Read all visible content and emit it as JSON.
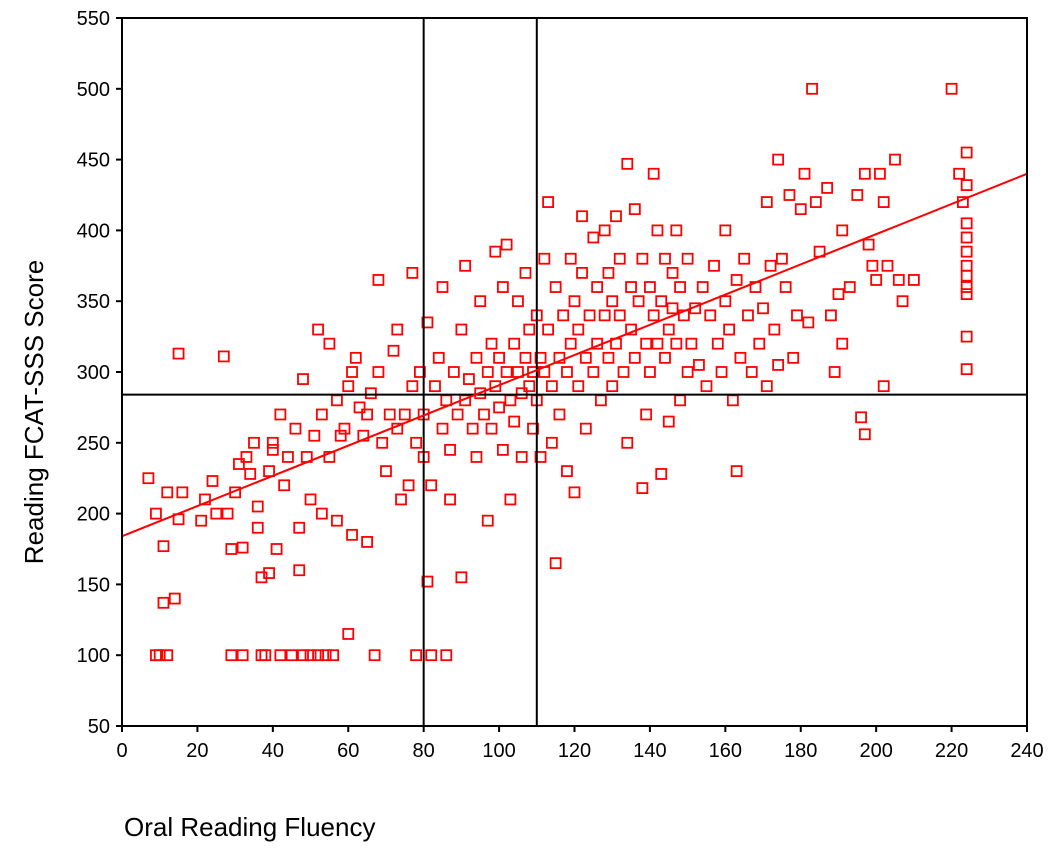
{
  "chart_data": {
    "type": "scatter",
    "title": "",
    "xlabel": "Oral Reading Fluency",
    "ylabel": "Reading FCAT-SSS Score",
    "xlim": [
      0,
      240
    ],
    "ylim": [
      50,
      550
    ],
    "xticks": [
      0,
      20,
      40,
      60,
      80,
      100,
      120,
      140,
      160,
      180,
      200,
      220,
      240
    ],
    "yticks": [
      50,
      100,
      150,
      200,
      250,
      300,
      350,
      400,
      450,
      500,
      550
    ],
    "grid": false,
    "legend": "none",
    "marker": "open-square",
    "series_color": "#ff0000",
    "reference_lines": {
      "vertical_x": [
        80,
        110
      ],
      "horizontal_y": [
        284
      ]
    },
    "regression_line": {
      "x": [
        0,
        240
      ],
      "y": [
        184,
        440
      ]
    },
    "series": [
      {
        "values_xy": [
          [
            7,
            225
          ],
          [
            9,
            100
          ],
          [
            10,
            100
          ],
          [
            9,
            200
          ],
          [
            11,
            177
          ],
          [
            11,
            137
          ],
          [
            12,
            215
          ],
          [
            12,
            100
          ],
          [
            14,
            140
          ],
          [
            15,
            313
          ],
          [
            16,
            215
          ],
          [
            15,
            196
          ],
          [
            21,
            195
          ],
          [
            22,
            210
          ],
          [
            24,
            223
          ],
          [
            25,
            200
          ],
          [
            27,
            311
          ],
          [
            28,
            200
          ],
          [
            29,
            175
          ],
          [
            29,
            100
          ],
          [
            30,
            215
          ],
          [
            31,
            235
          ],
          [
            32,
            100
          ],
          [
            32,
            176
          ],
          [
            33,
            240
          ],
          [
            34,
            228
          ],
          [
            35,
            250
          ],
          [
            36,
            205
          ],
          [
            36,
            190
          ],
          [
            37,
            100
          ],
          [
            37,
            155
          ],
          [
            38,
            100
          ],
          [
            39,
            230
          ],
          [
            39,
            158
          ],
          [
            40,
            250
          ],
          [
            40,
            245
          ],
          [
            41,
            175
          ],
          [
            42,
            100
          ],
          [
            42,
            270
          ],
          [
            43,
            220
          ],
          [
            44,
            240
          ],
          [
            45,
            100
          ],
          [
            46,
            260
          ],
          [
            47,
            190
          ],
          [
            47,
            160
          ],
          [
            48,
            295
          ],
          [
            48,
            100
          ],
          [
            49,
            240
          ],
          [
            50,
            210
          ],
          [
            50,
            100
          ],
          [
            51,
            255
          ],
          [
            52,
            330
          ],
          [
            52,
            100
          ],
          [
            53,
            270
          ],
          [
            53,
            200
          ],
          [
            54,
            100
          ],
          [
            55,
            240
          ],
          [
            55,
            320
          ],
          [
            56,
            100
          ],
          [
            57,
            280
          ],
          [
            57,
            195
          ],
          [
            58,
            255
          ],
          [
            59,
            260
          ],
          [
            60,
            290
          ],
          [
            60,
            115
          ],
          [
            61,
            300
          ],
          [
            61,
            185
          ],
          [
            62,
            310
          ],
          [
            63,
            275
          ],
          [
            64,
            255
          ],
          [
            65,
            270
          ],
          [
            65,
            180
          ],
          [
            66,
            285
          ],
          [
            67,
            100
          ],
          [
            68,
            365
          ],
          [
            68,
            300
          ],
          [
            69,
            250
          ],
          [
            70,
            230
          ],
          [
            71,
            270
          ],
          [
            72,
            315
          ],
          [
            73,
            330
          ],
          [
            73,
            260
          ],
          [
            74,
            210
          ],
          [
            75,
            270
          ],
          [
            76,
            220
          ],
          [
            77,
            370
          ],
          [
            77,
            290
          ],
          [
            78,
            250
          ],
          [
            78,
            100
          ],
          [
            79,
            300
          ],
          [
            80,
            270
          ],
          [
            80,
            240
          ],
          [
            81,
            335
          ],
          [
            81,
            152
          ],
          [
            82,
            100
          ],
          [
            82,
            220
          ],
          [
            83,
            290
          ],
          [
            84,
            310
          ],
          [
            85,
            260
          ],
          [
            85,
            360
          ],
          [
            86,
            100
          ],
          [
            86,
            280
          ],
          [
            87,
            245
          ],
          [
            87,
            210
          ],
          [
            88,
            300
          ],
          [
            89,
            270
          ],
          [
            90,
            155
          ],
          [
            90,
            330
          ],
          [
            91,
            280
          ],
          [
            91,
            375
          ],
          [
            92,
            295
          ],
          [
            93,
            260
          ],
          [
            94,
            310
          ],
          [
            94,
            240
          ],
          [
            95,
            350
          ],
          [
            95,
            285
          ],
          [
            96,
            270
          ],
          [
            97,
            300
          ],
          [
            97,
            195
          ],
          [
            98,
            320
          ],
          [
            98,
            260
          ],
          [
            99,
            290
          ],
          [
            99,
            385
          ],
          [
            100,
            275
          ],
          [
            100,
            310
          ],
          [
            101,
            360
          ],
          [
            101,
            245
          ],
          [
            102,
            300
          ],
          [
            102,
            390
          ],
          [
            103,
            280
          ],
          [
            103,
            210
          ],
          [
            104,
            320
          ],
          [
            104,
            265
          ],
          [
            105,
            300
          ],
          [
            105,
            350
          ],
          [
            106,
            285
          ],
          [
            106,
            240
          ],
          [
            107,
            310
          ],
          [
            107,
            370
          ],
          [
            108,
            290
          ],
          [
            108,
            330
          ],
          [
            109,
            260
          ],
          [
            109,
            300
          ],
          [
            110,
            280
          ],
          [
            110,
            340
          ],
          [
            111,
            310
          ],
          [
            111,
            240
          ],
          [
            112,
            380
          ],
          [
            112,
            300
          ],
          [
            113,
            420
          ],
          [
            113,
            330
          ],
          [
            114,
            290
          ],
          [
            114,
            250
          ],
          [
            115,
            165
          ],
          [
            115,
            360
          ],
          [
            116,
            310
          ],
          [
            116,
            270
          ],
          [
            117,
            340
          ],
          [
            118,
            300
          ],
          [
            118,
            230
          ],
          [
            119,
            380
          ],
          [
            119,
            320
          ],
          [
            120,
            350
          ],
          [
            120,
            215
          ],
          [
            121,
            330
          ],
          [
            121,
            290
          ],
          [
            122,
            410
          ],
          [
            122,
            370
          ],
          [
            123,
            310
          ],
          [
            123,
            260
          ],
          [
            124,
            340
          ],
          [
            125,
            300
          ],
          [
            125,
            395
          ],
          [
            126,
            360
          ],
          [
            126,
            320
          ],
          [
            127,
            280
          ],
          [
            128,
            340
          ],
          [
            128,
            400
          ],
          [
            129,
            310
          ],
          [
            129,
            370
          ],
          [
            130,
            350
          ],
          [
            130,
            290
          ],
          [
            131,
            320
          ],
          [
            131,
            410
          ],
          [
            132,
            340
          ],
          [
            132,
            380
          ],
          [
            133,
            300
          ],
          [
            134,
            250
          ],
          [
            134,
            447
          ],
          [
            135,
            360
          ],
          [
            135,
            330
          ],
          [
            136,
            415
          ],
          [
            136,
            310
          ],
          [
            137,
            350
          ],
          [
            138,
            380
          ],
          [
            138,
            218
          ],
          [
            139,
            320
          ],
          [
            139,
            270
          ],
          [
            140,
            360
          ],
          [
            140,
            300
          ],
          [
            141,
            340
          ],
          [
            141,
            440
          ],
          [
            142,
            400
          ],
          [
            142,
            320
          ],
          [
            143,
            350
          ],
          [
            143,
            228
          ],
          [
            144,
            380
          ],
          [
            144,
            310
          ],
          [
            145,
            330
          ],
          [
            145,
            265
          ],
          [
            146,
            370
          ],
          [
            146,
            345
          ],
          [
            147,
            320
          ],
          [
            147,
            400
          ],
          [
            148,
            360
          ],
          [
            148,
            280
          ],
          [
            149,
            340
          ],
          [
            150,
            300
          ],
          [
            150,
            380
          ],
          [
            151,
            320
          ],
          [
            152,
            345
          ],
          [
            153,
            305
          ],
          [
            154,
            360
          ],
          [
            155,
            290
          ],
          [
            156,
            340
          ],
          [
            157,
            375
          ],
          [
            158,
            320
          ],
          [
            159,
            300
          ],
          [
            160,
            350
          ],
          [
            160,
            400
          ],
          [
            161,
            330
          ],
          [
            162,
            280
          ],
          [
            163,
            230
          ],
          [
            163,
            365
          ],
          [
            164,
            310
          ],
          [
            165,
            380
          ],
          [
            166,
            340
          ],
          [
            167,
            300
          ],
          [
            168,
            360
          ],
          [
            169,
            320
          ],
          [
            170,
            345
          ],
          [
            171,
            420
          ],
          [
            171,
            290
          ],
          [
            172,
            375
          ],
          [
            173,
            330
          ],
          [
            174,
            450
          ],
          [
            174,
            305
          ],
          [
            175,
            380
          ],
          [
            176,
            360
          ],
          [
            177,
            425
          ],
          [
            178,
            310
          ],
          [
            179,
            340
          ],
          [
            180,
            415
          ],
          [
            181,
            440
          ],
          [
            182,
            335
          ],
          [
            183,
            500
          ],
          [
            184,
            420
          ],
          [
            185,
            385
          ],
          [
            187,
            430
          ],
          [
            188,
            340
          ],
          [
            189,
            300
          ],
          [
            190,
            355
          ],
          [
            191,
            400
          ],
          [
            191,
            320
          ],
          [
            193,
            360
          ],
          [
            195,
            425
          ],
          [
            196,
            268
          ],
          [
            197,
            440
          ],
          [
            197,
            256
          ],
          [
            198,
            390
          ],
          [
            199,
            375
          ],
          [
            200,
            365
          ],
          [
            201,
            440
          ],
          [
            202,
            290
          ],
          [
            202,
            420
          ],
          [
            203,
            375
          ],
          [
            205,
            450
          ],
          [
            206,
            365
          ],
          [
            207,
            350
          ],
          [
            210,
            365
          ],
          [
            220,
            500
          ],
          [
            222,
            440
          ],
          [
            223,
            420
          ],
          [
            224,
            455
          ],
          [
            224,
            432
          ],
          [
            224,
            405
          ],
          [
            224,
            395
          ],
          [
            224,
            385
          ],
          [
            224,
            375
          ],
          [
            224,
            368
          ],
          [
            224,
            360
          ],
          [
            224,
            355
          ],
          [
            224,
            325
          ],
          [
            224,
            302
          ]
        ]
      }
    ]
  }
}
